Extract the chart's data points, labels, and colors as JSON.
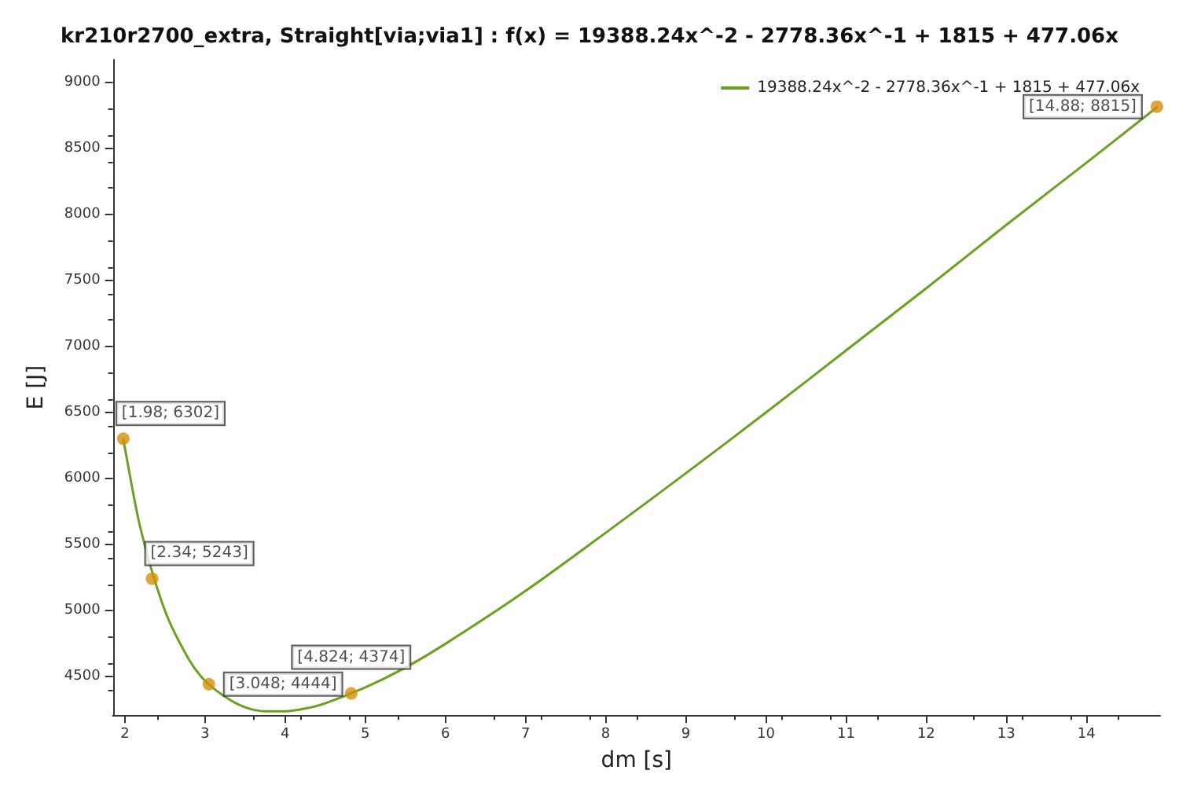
{
  "chart_data": {
    "type": "line",
    "title": "kr210r2700_extra, Straight[via;via1] : f(x) = 19388.24x^-2 - 2778.36x^-1 + 1815 + 477.06x",
    "xlabel": "dm [s]",
    "ylabel": "E [J]",
    "xlim": [
      1.85,
      14.92
    ],
    "ylim": [
      4210,
      9170
    ],
    "xticks": [
      2,
      3,
      4,
      5,
      6,
      7,
      8,
      9,
      10,
      11,
      12,
      13,
      14
    ],
    "yticks": [
      4500,
      5000,
      5500,
      6000,
      6500,
      7000,
      7500,
      8000,
      8500,
      9000
    ],
    "grid": false,
    "legend": "top right",
    "series": [
      {
        "name": "19388.24x^-2 - 2778.36x^-1 + 1815 + 477.06x",
        "marker": "none",
        "color": "#6aa121",
        "x": [
          1.98,
          2,
          2.2,
          2.5,
          2.8,
          3,
          3.25,
          3.5,
          3.75,
          4,
          4.25,
          4.5,
          5,
          5.5,
          6,
          7,
          8,
          9,
          10,
          11,
          12,
          13,
          14,
          14.88
        ],
        "values": [
          6300,
          6230,
          5610,
          5000,
          4630,
          4470,
          4350,
          4270,
          4240,
          4240,
          4260,
          4300,
          4420,
          4570,
          4750,
          5150,
          5590,
          6040,
          6500,
          6970,
          7440,
          7920,
          8390,
          8810
        ]
      },
      {
        "type": "scatter",
        "marker": "circle",
        "color": "#d4900a",
        "x": [
          1.98,
          2.34,
          3.048,
          4.824,
          14.88
        ],
        "values": [
          6302,
          5243,
          4444,
          4374,
          8815
        ],
        "value_labels": [
          "[1.98; 6302]",
          "[2.34; 5243]",
          "[3.048; 4444]",
          "[4.824; 4374]",
          "[14.88; 8815]"
        ]
      }
    ]
  }
}
